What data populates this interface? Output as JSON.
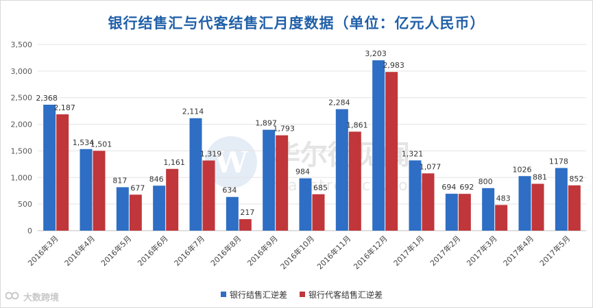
{
  "chart_data": {
    "type": "bar",
    "title": "银行结售汇与代客结售汇月度数据（单位：亿元人民币）",
    "categories": [
      "2016年3月",
      "2016年4月",
      "2016年5月",
      "2016年6月",
      "2016年7月",
      "2016年8月",
      "2016年9月",
      "2016年10月",
      "2016年11月",
      "2016年12月",
      "2017年1月",
      "2017年2月",
      "2017年3月",
      "2017年4月",
      "2017年5月"
    ],
    "series": [
      {
        "name": "银行结售汇逆差",
        "color": "#2e6ec4",
        "values": [
          2368,
          1534,
          817,
          846,
          2114,
          634,
          1897,
          984,
          2284,
          3203,
          1321,
          694,
          800,
          1026,
          1178
        ],
        "labels": [
          "2,368",
          "1,534",
          "817",
          "846",
          "2,114",
          "634",
          "1,897",
          "984",
          "2,284",
          "3,203",
          "1,321",
          "694",
          "800",
          "1026",
          "1178"
        ]
      },
      {
        "name": "银行代客结售汇逆差",
        "color": "#c0363a",
        "values": [
          2187,
          1501,
          677,
          1161,
          1319,
          217,
          1793,
          685,
          1861,
          2983,
          1077,
          692,
          483,
          881,
          852
        ],
        "labels": [
          "2,187",
          "1,501",
          "677",
          "1,161",
          "1,319",
          "217",
          "1,793",
          "685",
          "1,861",
          "2,983",
          "1,077",
          "692",
          "483",
          "881",
          "852"
        ]
      }
    ],
    "ylim": [
      0,
      3500
    ],
    "yticks": [
      0,
      500,
      1000,
      1500,
      2000,
      2500,
      3000,
      3500
    ],
    "ytick_labels": [
      "0",
      "500",
      "1,000",
      "1,500",
      "2,000",
      "2,500",
      "3,000",
      "3,500"
    ],
    "grid": true,
    "legend_position": "bottom",
    "xlabel": "",
    "ylabel": ""
  },
  "watermarks": {
    "center_text": "华尔街见闻",
    "center_subtext": "wallstreetcn.com",
    "corner_text": "大数跨境"
  }
}
